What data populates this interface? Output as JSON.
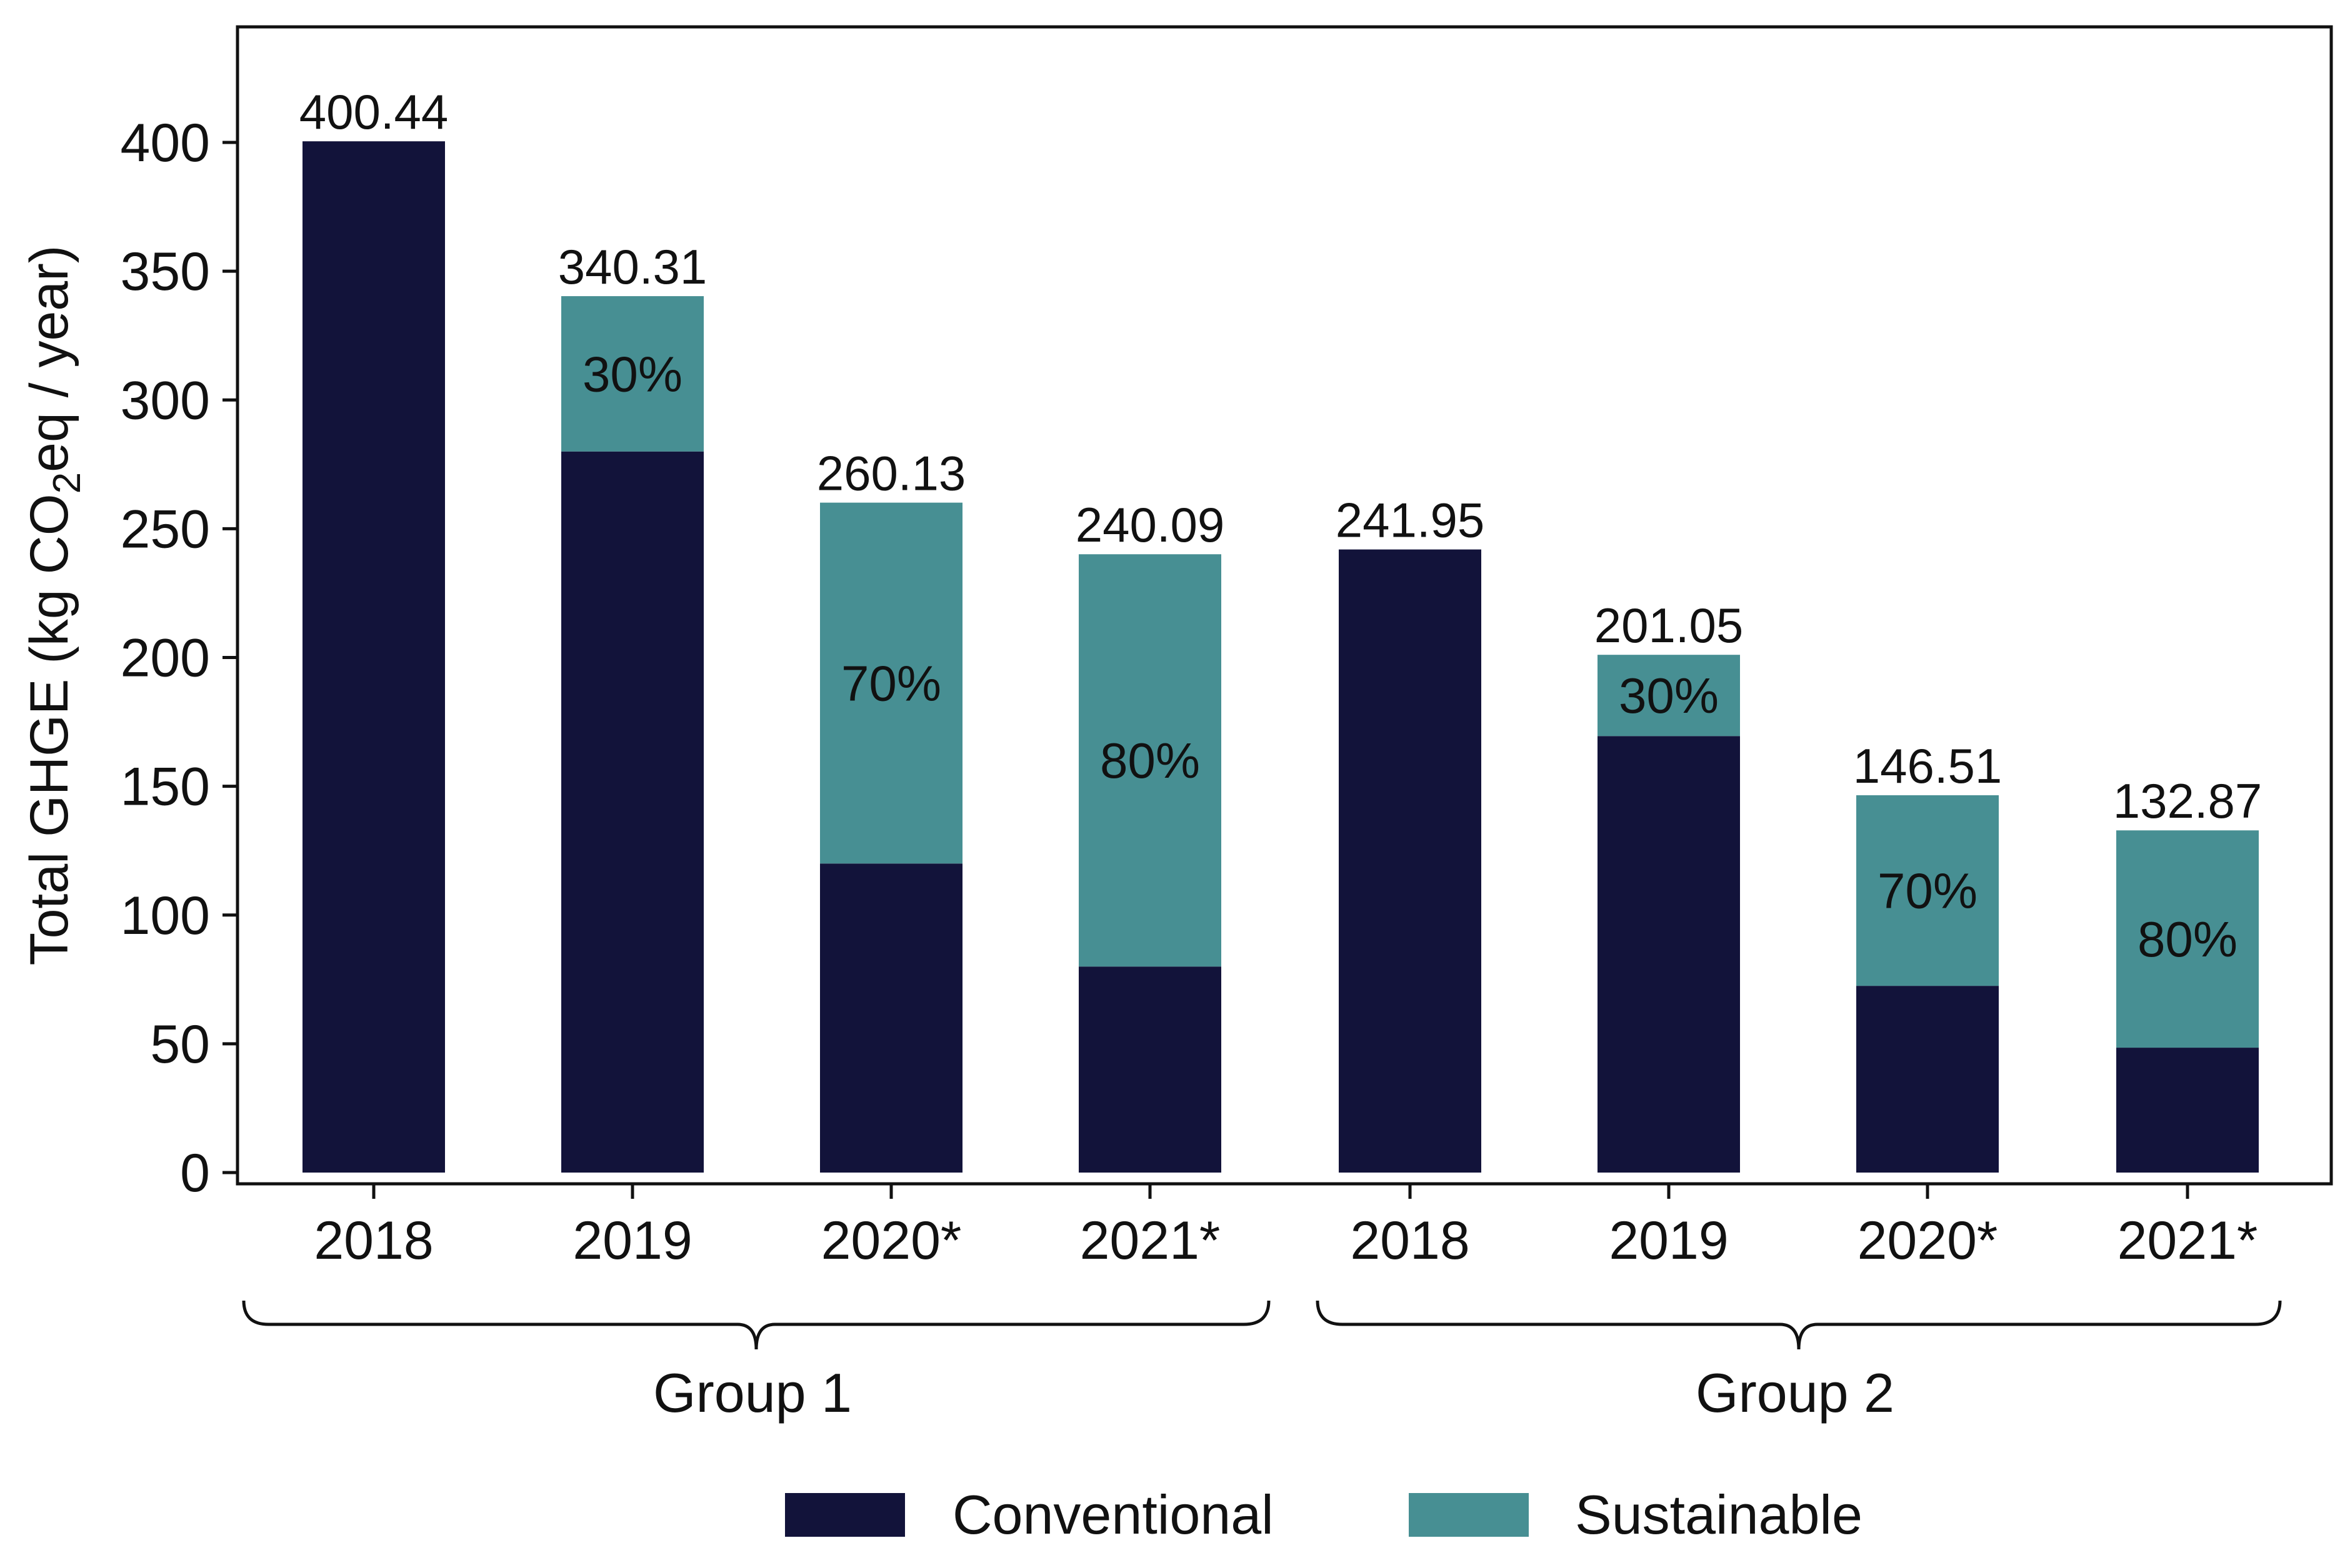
{
  "chart_data": {
    "type": "bar",
    "stacked": true,
    "ylabel_prefix": "Total GHGE (kg CO",
    "ylabel_sub": "2",
    "ylabel_suffix": "eq / year)",
    "xlabel": "",
    "ylim": [
      0,
      445
    ],
    "yticks": [
      0,
      50,
      100,
      150,
      200,
      250,
      300,
      350,
      400
    ],
    "grid": false,
    "legend_position": "bottom-center",
    "categories": [
      "2018",
      "2019",
      "2020*",
      "2021*",
      "2018",
      "2019",
      "2020*",
      "2021*"
    ],
    "groups": [
      {
        "label": "Group 1",
        "start": 0,
        "end": 3
      },
      {
        "label": "Group 2",
        "start": 4,
        "end": 7
      }
    ],
    "series": [
      {
        "name": "Conventional",
        "color": "#12133a",
        "values": [
          400.44,
          280.0,
          120.0,
          80.0,
          241.95,
          169.5,
          72.5,
          48.5
        ]
      },
      {
        "name": "Sustainable",
        "color": "#478f93",
        "values": [
          0,
          60.31,
          140.13,
          160.09,
          0,
          31.55,
          74.01,
          84.37
        ]
      }
    ],
    "totals": [
      "400.44",
      "340.31",
      "260.13",
      "240.09",
      "241.95",
      "201.05",
      "146.51",
      "132.87"
    ],
    "share_labels": [
      "",
      "30%",
      "70%",
      "80%",
      "",
      "30%",
      "70%",
      "80%"
    ]
  }
}
